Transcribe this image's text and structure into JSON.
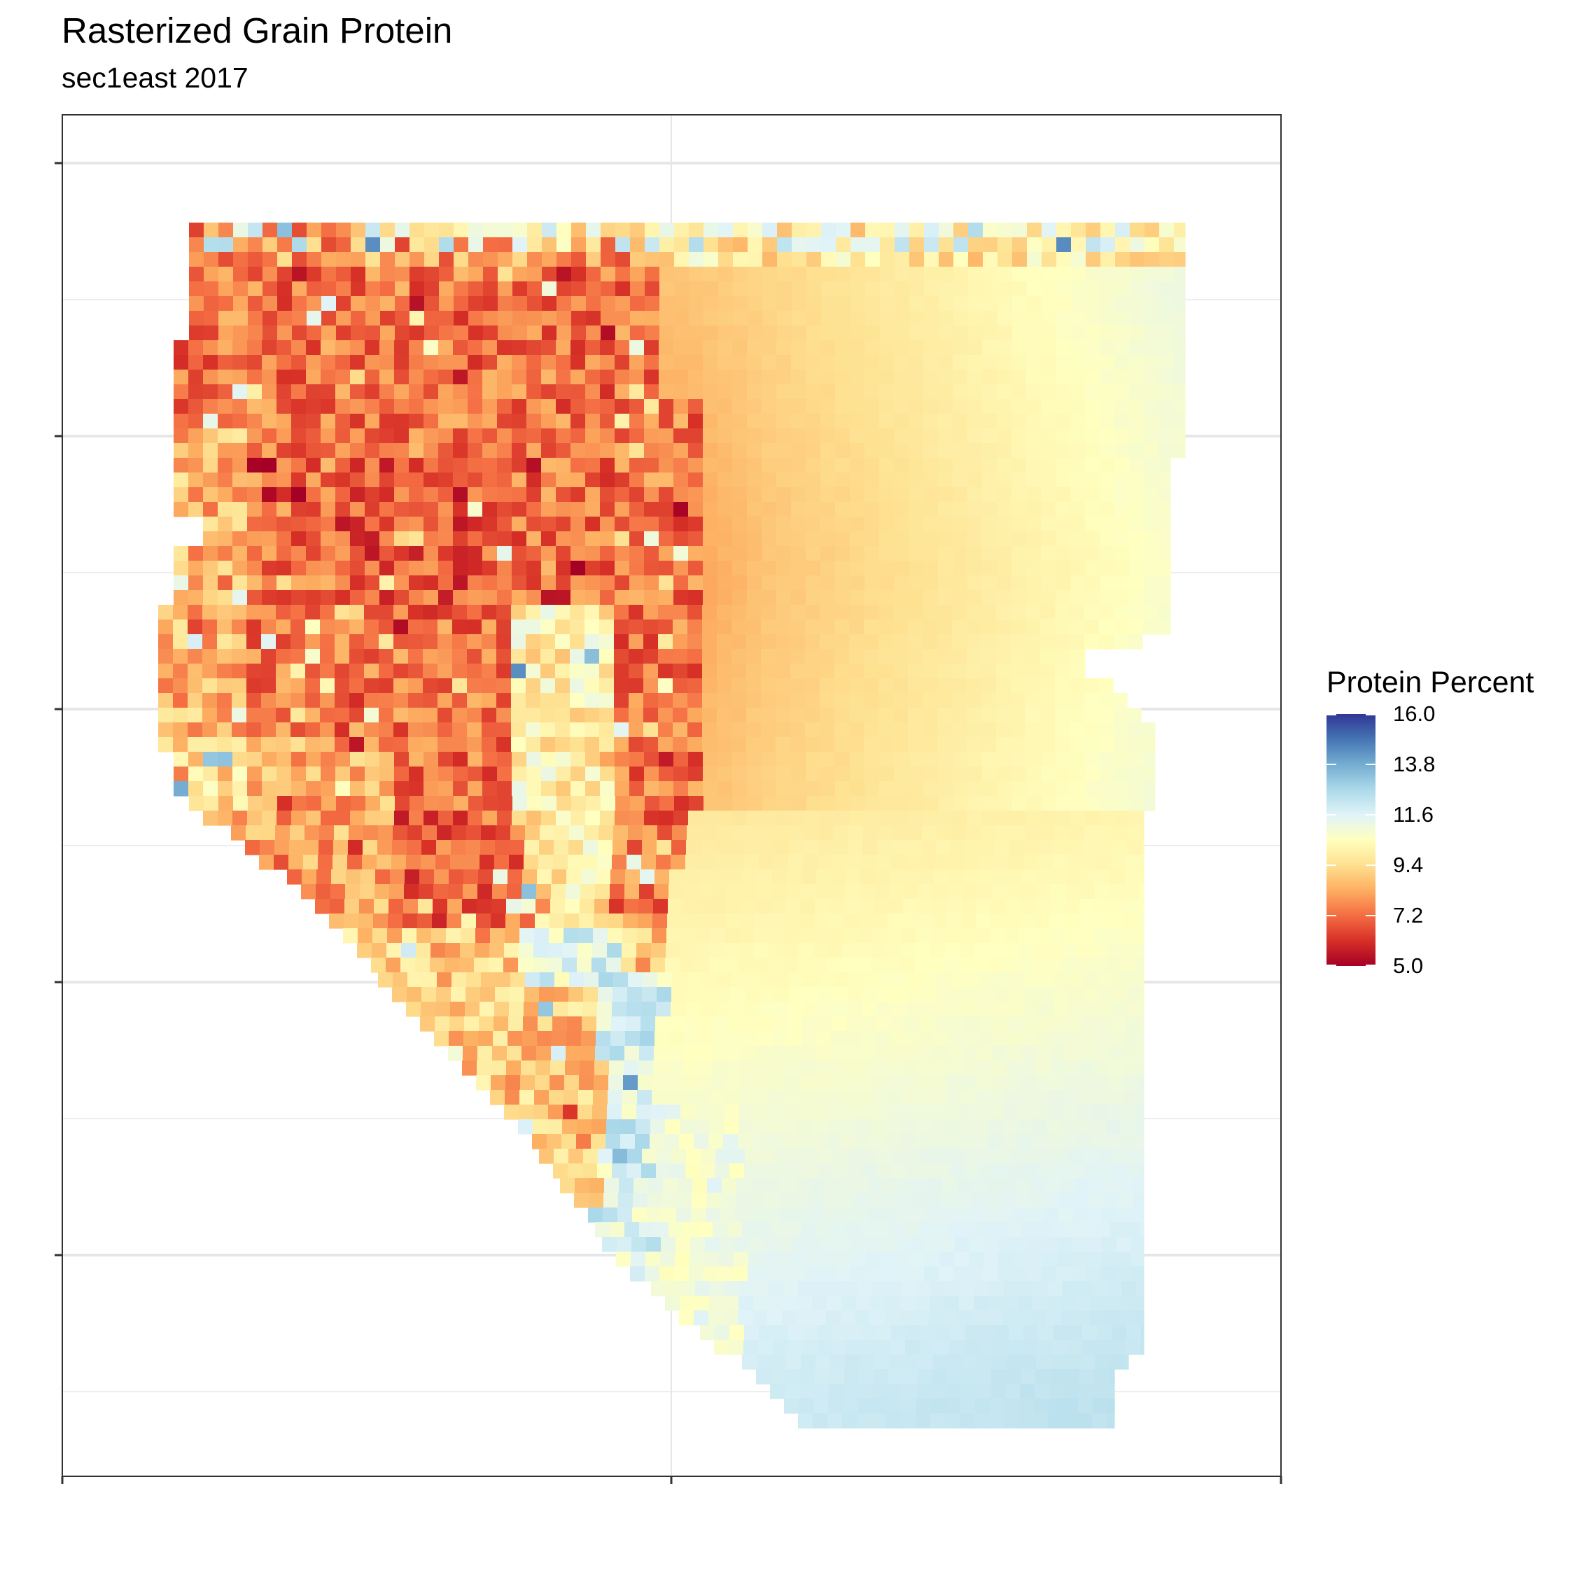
{
  "title": "Rasterized Grain Protein",
  "subtitle": "sec1east 2017",
  "chart_data": {
    "type": "heatmap",
    "title": "Rasterized Grain Protein",
    "subtitle": "sec1east 2017",
    "xlabel": "",
    "ylabel": "",
    "x_tick_labels": [],
    "y_tick_labels": [],
    "grid": true,
    "legend_placement": "right",
    "legend": {
      "title": "Protein Percent",
      "range": [
        5.0,
        16.0
      ],
      "ticks": [
        "16.0",
        "13.8",
        "11.6",
        "9.4",
        "7.2",
        "5.0"
      ],
      "palette": "RdYlBu",
      "palette_low_to_high": [
        "#a50026",
        "#d73027",
        "#f46d43",
        "#fdae61",
        "#fee090",
        "#ffffbf",
        "#e0f3f8",
        "#abd9e9",
        "#74add1",
        "#4575b4",
        "#313695"
      ]
    },
    "field_pattern": {
      "description_values": [
        {
          "region": "north edge strip",
          "protein_percent": 11.0
        },
        {
          "region": "western interior (scanned cells)",
          "protein_percent": 7.3
        },
        {
          "region": "central interpolated zone",
          "protein_percent": 8.8
        },
        {
          "region": "eastern interpolated zone",
          "protein_percent": 10.6
        },
        {
          "region": "southern interpolated zone",
          "protein_percent": 11.6
        },
        {
          "region": "south-west edge strip",
          "protein_percent": 12.3
        }
      ]
    }
  },
  "colors": {
    "panel_border": "#333333",
    "grid_major": "#e6e6e6",
    "grid_minor": "#eeeeee",
    "background": "#ffffff"
  }
}
